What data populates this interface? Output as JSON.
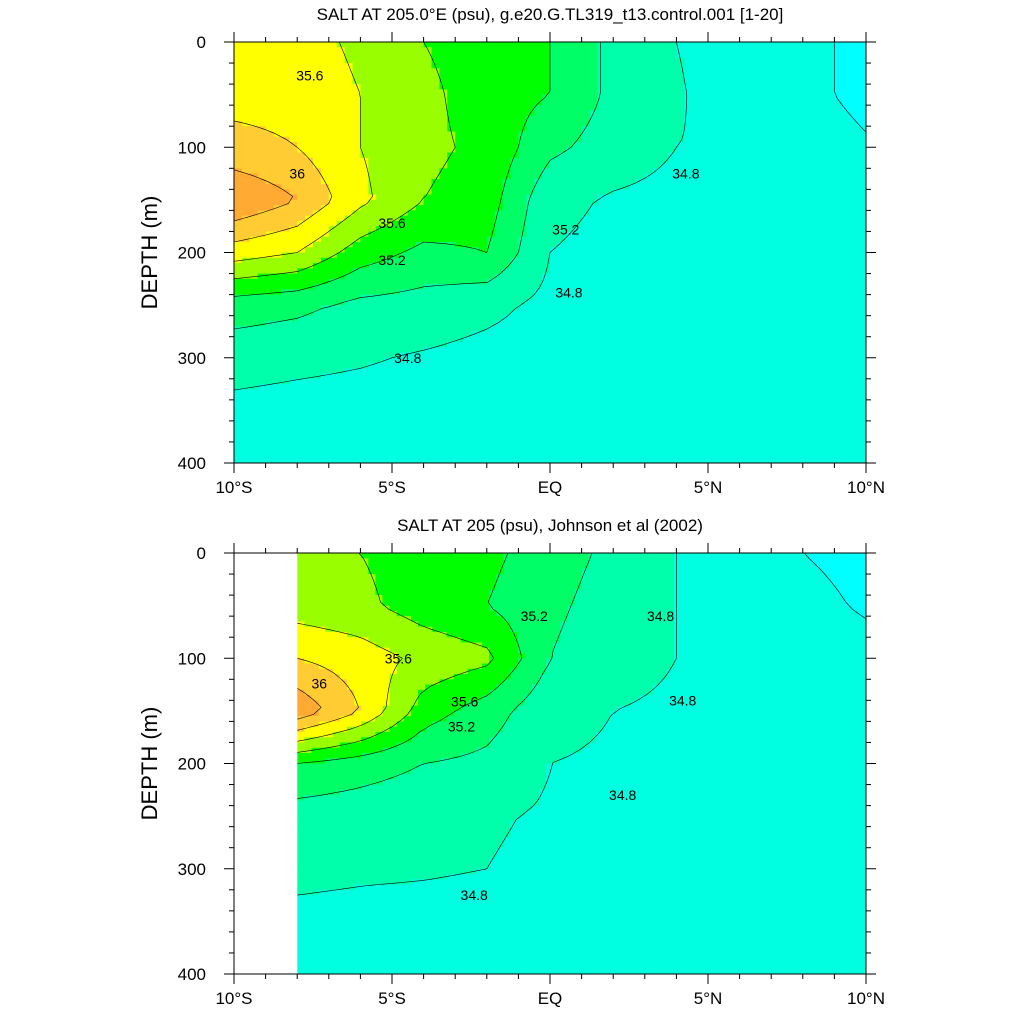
{
  "chart_data": [
    {
      "type": "contour",
      "title": "SALT AT 205.0°E (psu), g.e20.G.TL319_t13.control.001 [1-20]",
      "ylabel": "DEPTH (m)",
      "xlabel": "",
      "x_ticks": [
        "10°S",
        "5°S",
        "EQ",
        "5°N",
        "10°N"
      ],
      "x_tick_values": [
        -10,
        -5,
        0,
        5,
        10
      ],
      "y_ticks": [
        "0",
        "100",
        "200",
        "300",
        "400"
      ],
      "y_tick_values": [
        0,
        100,
        200,
        300,
        400
      ],
      "xlim": [
        -10,
        10
      ],
      "ylim": [
        400,
        0
      ],
      "contour_levels": [
        34.4,
        34.6,
        34.8,
        35.0,
        35.2,
        35.4,
        35.6,
        35.8,
        36.0,
        36.2
      ],
      "contour_labels": [
        {
          "text": "35.6",
          "lat": -7.6,
          "depth": 32
        },
        {
          "text": "36",
          "lat": -8.0,
          "depth": 125
        },
        {
          "text": "35.6",
          "lat": -5.0,
          "depth": 172
        },
        {
          "text": "35.2",
          "lat": -5.0,
          "depth": 207
        },
        {
          "text": "35.2",
          "lat": 0.5,
          "depth": 178
        },
        {
          "text": "34.8",
          "lat": 4.3,
          "depth": 125
        },
        {
          "text": "34.8",
          "lat": 0.6,
          "depth": 238
        },
        {
          "text": "34.8",
          "lat": -4.5,
          "depth": 300
        }
      ],
      "salinity_grid": {
        "lat": [
          -10,
          -8,
          -6,
          -4,
          -2,
          0,
          2,
          4,
          6,
          8,
          10
        ],
        "depth": [
          0,
          50,
          100,
          150,
          200,
          250,
          300,
          350,
          400
        ],
        "values": [
          [
            35.75,
            35.7,
            35.55,
            35.4,
            35.3,
            35.2,
            34.95,
            34.8,
            34.7,
            34.65,
            34.55
          ],
          [
            35.75,
            35.75,
            35.6,
            35.45,
            35.3,
            35.2,
            34.95,
            34.82,
            34.7,
            34.65,
            34.55
          ],
          [
            35.85,
            35.8,
            35.6,
            35.45,
            35.35,
            35.05,
            34.9,
            34.8,
            34.78,
            34.7,
            34.62
          ],
          [
            36.2,
            36.0,
            35.65,
            35.4,
            35.3,
            34.85,
            34.78,
            34.75,
            34.7,
            34.65,
            34.62
          ],
          [
            35.7,
            35.6,
            35.3,
            35.15,
            35.2,
            34.8,
            34.75,
            34.72,
            34.68,
            34.65,
            34.6
          ],
          [
            35.1,
            35.05,
            34.95,
            34.92,
            34.85,
            34.75,
            34.72,
            34.7,
            34.68,
            34.66,
            34.64
          ],
          [
            34.88,
            34.85,
            34.82,
            34.78,
            34.74,
            34.72,
            34.7,
            34.69,
            34.68,
            34.66,
            34.65
          ],
          [
            34.75,
            34.73,
            34.72,
            34.71,
            34.7,
            34.69,
            34.68,
            34.68,
            34.67,
            34.66,
            34.65
          ],
          [
            34.7,
            34.7,
            34.7,
            34.69,
            34.68,
            34.68,
            34.67,
            34.67,
            34.66,
            34.66,
            34.65
          ]
        ]
      }
    },
    {
      "type": "contour",
      "title": "SALT AT 205 (psu), Johnson et al (2002)",
      "ylabel": "DEPTH (m)",
      "xlabel": "",
      "x_ticks": [
        "10°S",
        "5°S",
        "EQ",
        "5°N",
        "10°N"
      ],
      "x_tick_values": [
        -10,
        -5,
        0,
        5,
        10
      ],
      "y_ticks": [
        "0",
        "100",
        "200",
        "300",
        "400"
      ],
      "y_tick_values": [
        0,
        100,
        200,
        300,
        400
      ],
      "xlim": [
        -10,
        10
      ],
      "ylim": [
        400,
        0
      ],
      "data_xrange": [
        -8,
        10
      ],
      "contour_levels": [
        34.4,
        34.6,
        34.8,
        35.0,
        35.2,
        35.4,
        35.6,
        35.8,
        36.0,
        36.2
      ],
      "contour_labels": [
        {
          "text": "35.2",
          "lat": -0.5,
          "depth": 60
        },
        {
          "text": "34.8",
          "lat": 3.5,
          "depth": 60
        },
        {
          "text": "35.6",
          "lat": -4.8,
          "depth": 100
        },
        {
          "text": "36",
          "lat": -7.3,
          "depth": 124
        },
        {
          "text": "35.6",
          "lat": -2.7,
          "depth": 141
        },
        {
          "text": "35.2",
          "lat": -2.8,
          "depth": 165
        },
        {
          "text": "34.8",
          "lat": 4.2,
          "depth": 140
        },
        {
          "text": "34.8",
          "lat": 2.3,
          "depth": 230
        },
        {
          "text": "34.8",
          "lat": -2.4,
          "depth": 325
        }
      ],
      "salinity_grid": {
        "lat": [
          -8,
          -6,
          -4,
          -2,
          0,
          2,
          4,
          6,
          8,
          10
        ],
        "depth": [
          0,
          50,
          100,
          150,
          200,
          250,
          300,
          350,
          400
        ],
        "values": [
          [
            35.45,
            35.4,
            35.3,
            35.25,
            35.1,
            34.95,
            34.8,
            34.7,
            34.6,
            34.55
          ],
          [
            35.5,
            35.45,
            35.3,
            35.2,
            35.05,
            34.9,
            34.8,
            34.72,
            34.65,
            34.58
          ],
          [
            35.8,
            35.7,
            35.55,
            35.45,
            35.0,
            34.85,
            34.8,
            34.78,
            34.7,
            34.66
          ],
          [
            36.15,
            35.8,
            35.3,
            35.1,
            34.85,
            34.8,
            34.78,
            34.7,
            34.68,
            34.65
          ],
          [
            35.2,
            35.1,
            35.0,
            34.95,
            34.8,
            34.78,
            34.74,
            34.7,
            34.68,
            34.66
          ],
          [
            34.9,
            34.88,
            34.85,
            34.82,
            34.78,
            34.75,
            34.72,
            34.7,
            34.68,
            34.66
          ],
          [
            34.85,
            34.83,
            34.82,
            34.8,
            34.76,
            34.73,
            34.71,
            34.7,
            34.68,
            34.66
          ],
          [
            34.75,
            34.74,
            34.73,
            34.72,
            34.71,
            34.7,
            34.69,
            34.68,
            34.67,
            34.66
          ],
          [
            34.7,
            34.7,
            34.7,
            34.69,
            34.69,
            34.68,
            34.68,
            34.67,
            34.66,
            34.66
          ]
        ]
      }
    }
  ],
  "colormap": [
    "#00ffff",
    "#00ffe0",
    "#00ffaa",
    "#00ff66",
    "#00ff00",
    "#99ff00",
    "#ffff00",
    "#ffcc33",
    "#ffaa33",
    "#ff8833"
  ],
  "contour_line_color": "#000000"
}
